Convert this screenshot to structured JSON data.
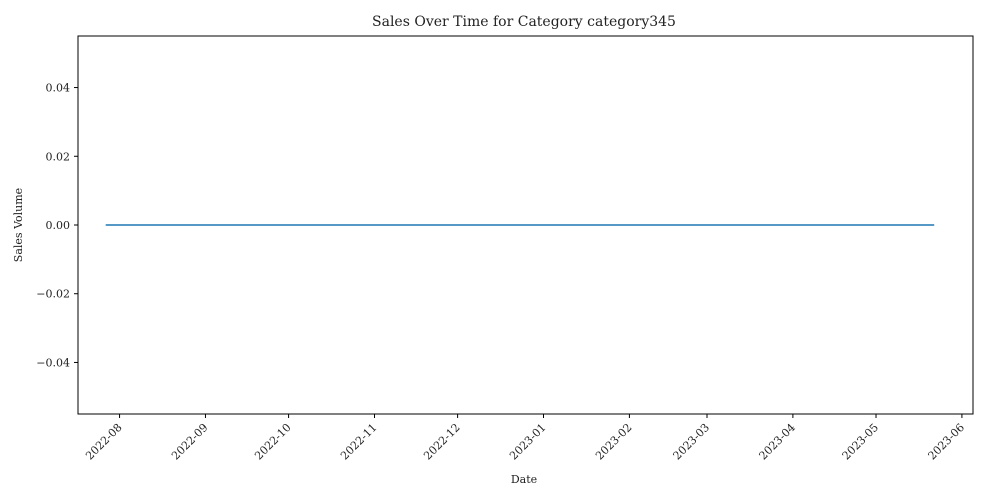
{
  "chart_data": {
    "type": "line",
    "title": "Sales Over Time for Category category345",
    "xlabel": "Date",
    "ylabel": "Sales Volume",
    "x_ticks": [
      "2022-08",
      "2022-09",
      "2022-10",
      "2022-11",
      "2022-12",
      "2023-01",
      "2023-02",
      "2023-03",
      "2023-04",
      "2023-05",
      "2023-06"
    ],
    "y_ticks": [
      "0.04",
      "0.02",
      "0.00",
      "−0.02",
      "−0.04"
    ],
    "ylim": [
      -0.055,
      0.055
    ],
    "xlim": [
      "2022-07-17",
      "2023-06-05"
    ],
    "grid": false,
    "series": [
      {
        "color": "#1f77b4",
        "x": [
          "2022-07-27",
          "2023-05-22"
        ],
        "y": [
          0,
          0
        ]
      }
    ]
  }
}
